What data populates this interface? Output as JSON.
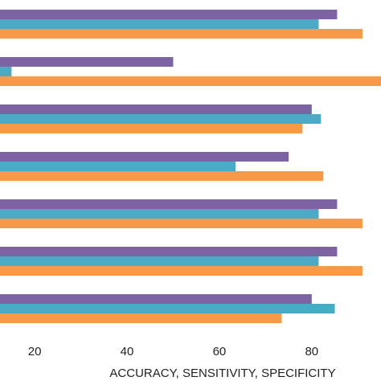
{
  "chart_data": {
    "type": "bar",
    "orientation": "horizontal",
    "groups": 7,
    "series": [
      {
        "values": [
          85.5,
          50.0,
          80.0,
          75.0,
          85.5,
          85.5,
          80.0
        ],
        "color": "#7E63A3"
      },
      {
        "values": [
          81.5,
          15.0,
          82.0,
          63.5,
          81.5,
          81.5,
          85.0
        ],
        "color": "#4BAAC6"
      },
      {
        "values": [
          91.0,
          95.0,
          78.0,
          82.5,
          91.0,
          91.0,
          73.5
        ],
        "color": "#F79A47"
      }
    ],
    "x_ticks": [
      20,
      40,
      60,
      80
    ],
    "xlim": [
      12.5,
      95.0
    ],
    "xlabel": "ACCURACY, SENSITIVITY, SPECIFICITY",
    "grid": false,
    "legend": "none"
  }
}
